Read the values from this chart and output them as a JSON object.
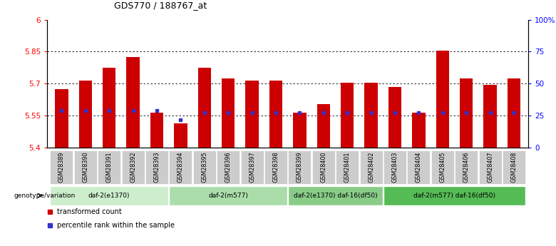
{
  "title": "GDS770 / 188767_at",
  "samples": [
    "GSM28389",
    "GSM28390",
    "GSM28391",
    "GSM28392",
    "GSM28393",
    "GSM28394",
    "GSM28395",
    "GSM28396",
    "GSM28397",
    "GSM28398",
    "GSM28399",
    "GSM28400",
    "GSM28401",
    "GSM28402",
    "GSM28403",
    "GSM28404",
    "GSM28405",
    "GSM28406",
    "GSM28407",
    "GSM28408"
  ],
  "bar_heights": [
    5.675,
    5.715,
    5.775,
    5.825,
    5.565,
    5.515,
    5.775,
    5.725,
    5.715,
    5.715,
    5.565,
    5.605,
    5.705,
    5.705,
    5.685,
    5.565,
    5.855,
    5.725,
    5.695,
    5.725
  ],
  "percentile_values": [
    5.575,
    5.575,
    5.575,
    5.575,
    5.575,
    5.53,
    5.565,
    5.565,
    5.565,
    5.565,
    5.565,
    5.565,
    5.565,
    5.565,
    5.565,
    5.565,
    5.565,
    5.565,
    5.565,
    5.565
  ],
  "bar_color": "#cc0000",
  "percentile_color": "#3333cc",
  "ylim_left": [
    5.4,
    6.0
  ],
  "ylim_right": [
    0,
    100
  ],
  "yticks_left": [
    5.4,
    5.55,
    5.7,
    5.85,
    6.0
  ],
  "ytick_labels_left": [
    "5.4",
    "5.55",
    "5.7",
    "5.85",
    "6"
  ],
  "yticks_right": [
    0,
    25,
    50,
    75,
    100
  ],
  "ytick_labels_right": [
    "0",
    "25",
    "50",
    "75",
    "100%"
  ],
  "grid_lines": [
    5.55,
    5.7,
    5.85
  ],
  "groups": [
    {
      "label": "daf-2(e1370)",
      "start": 0,
      "end": 4,
      "color": "#cceecc"
    },
    {
      "label": "daf-2(m577)",
      "start": 5,
      "end": 9,
      "color": "#aaddaa"
    },
    {
      "label": "daf-2(e1370) daf-16(df50)",
      "start": 10,
      "end": 13,
      "color": "#88cc88"
    },
    {
      "label": "daf-2(m577) daf-16(df50)",
      "start": 14,
      "end": 19,
      "color": "#55bb55"
    }
  ],
  "legend_items": [
    {
      "label": "transformed count",
      "color": "#cc0000"
    },
    {
      "label": "percentile rank within the sample",
      "color": "#3333cc"
    }
  ],
  "bar_width": 0.55,
  "xlabel_text": "genotype/variation"
}
